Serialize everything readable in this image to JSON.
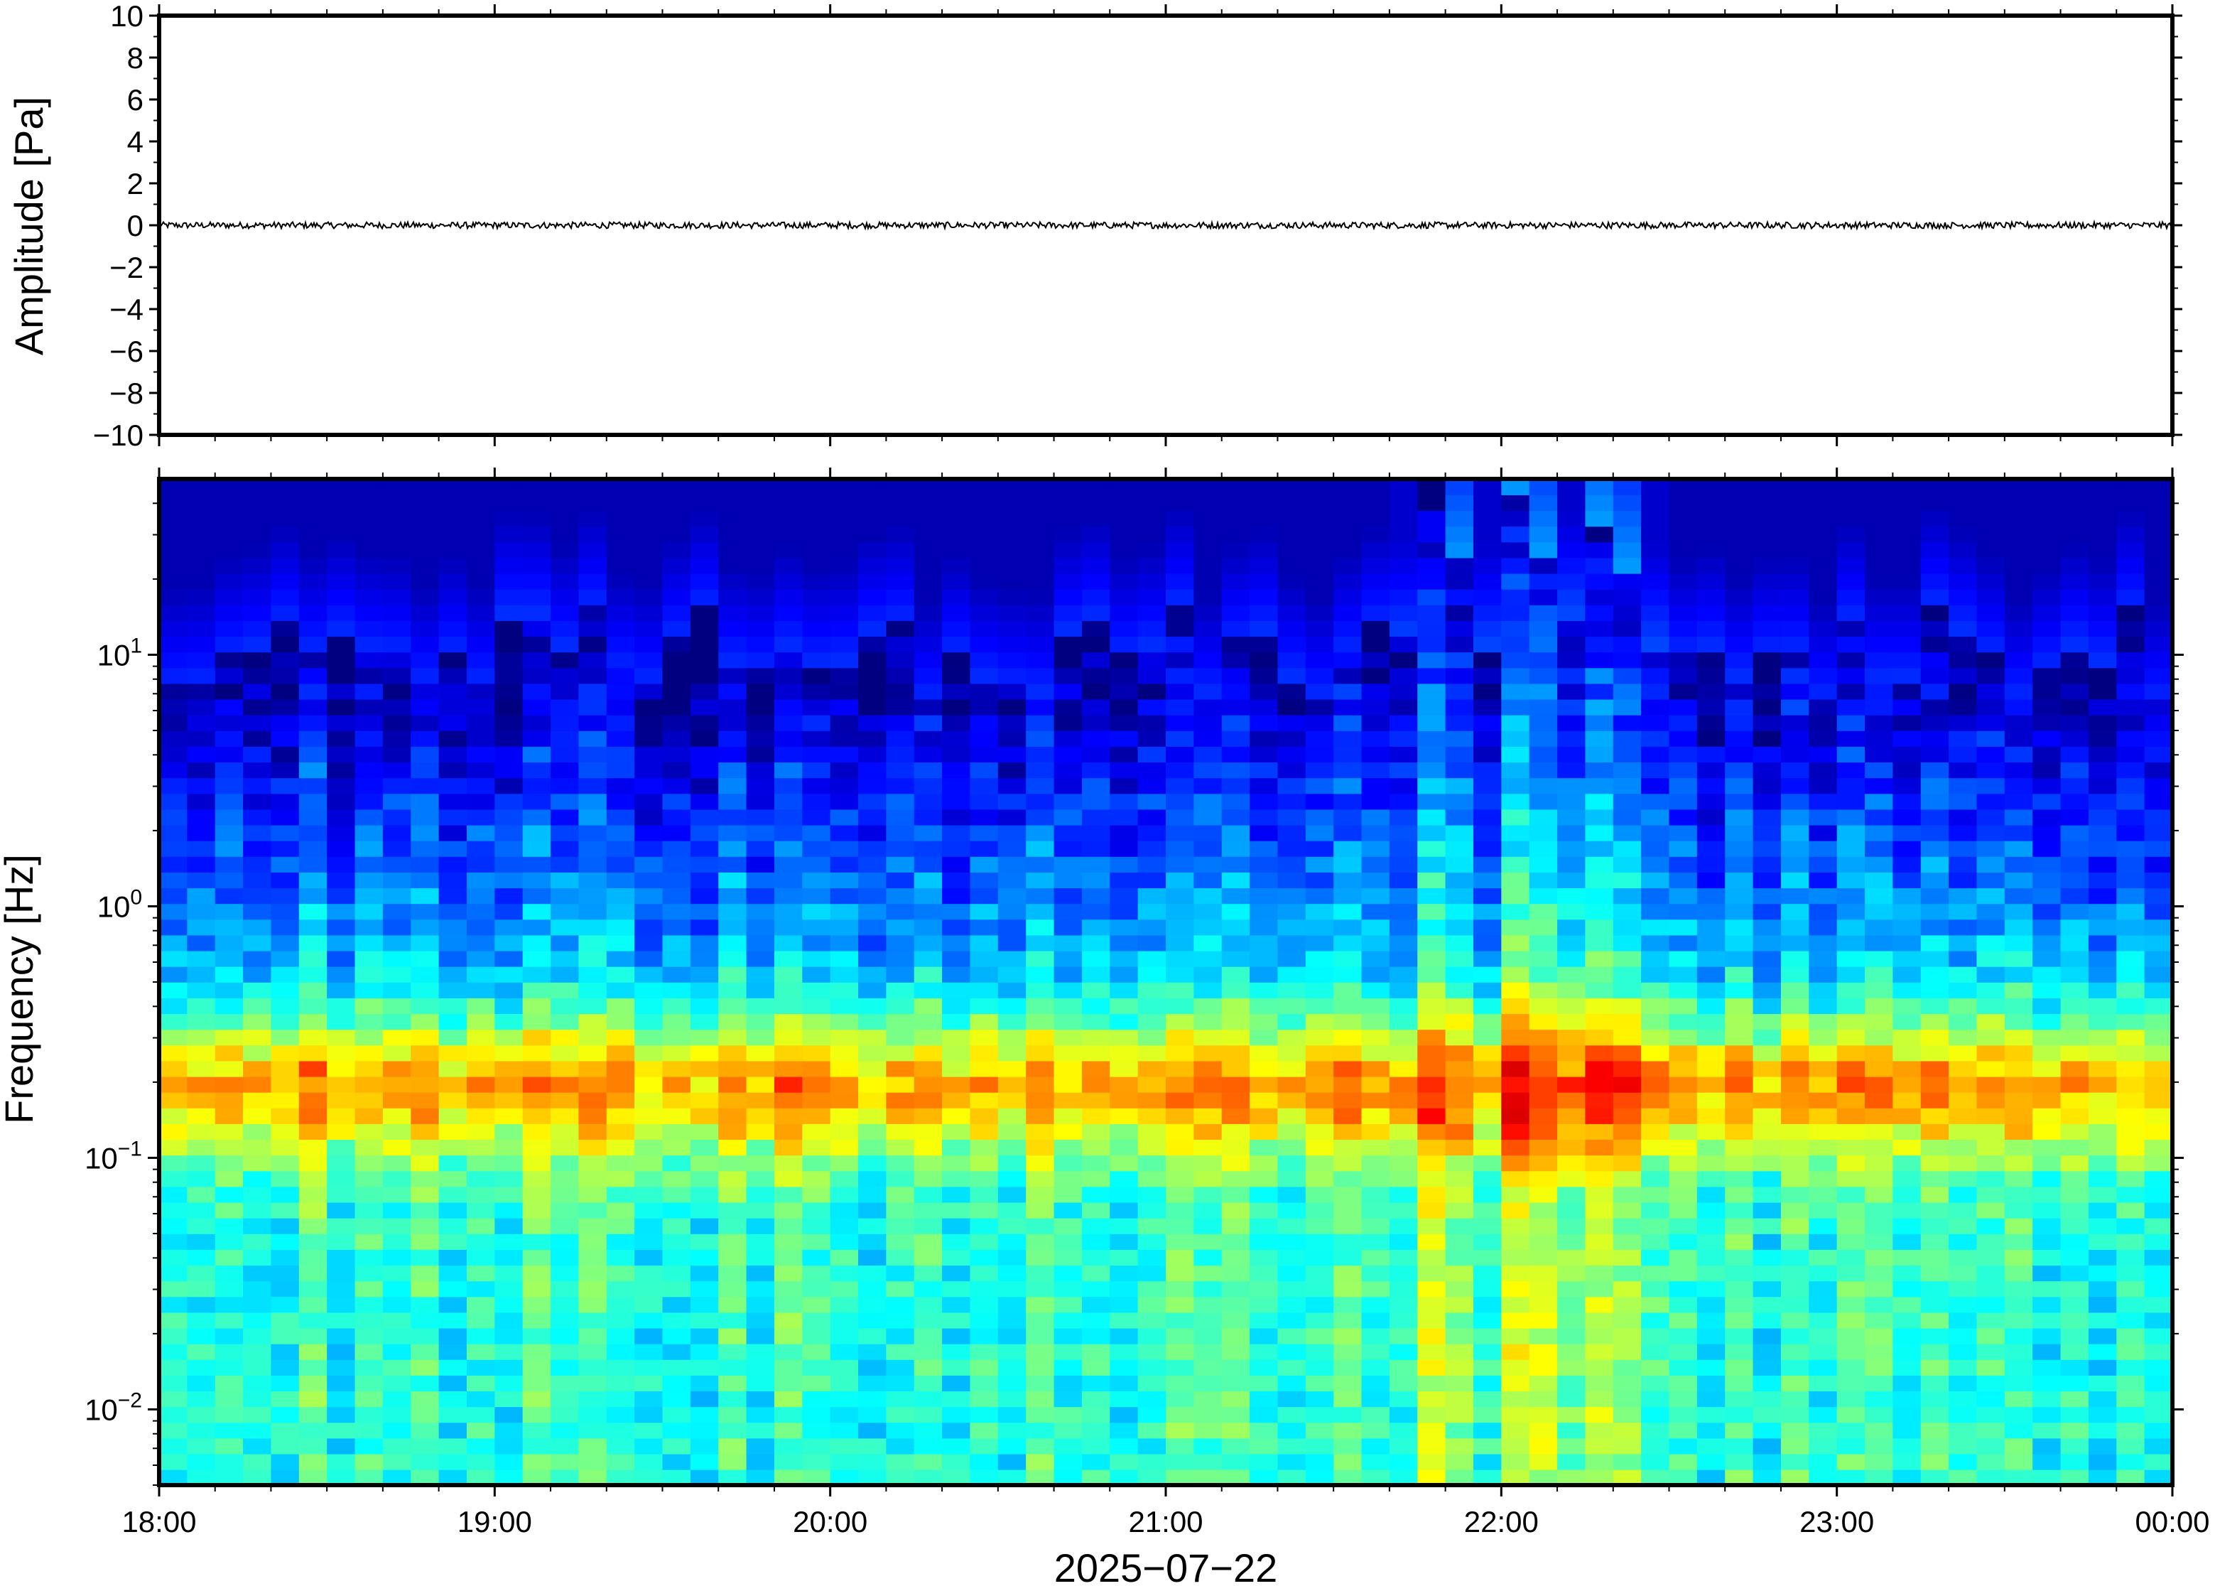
{
  "chart_data": [
    {
      "type": "line",
      "panel": "waveform",
      "ylabel": "Amplitude [Pa]",
      "ylim": [
        -10,
        10
      ],
      "y_ticks": [
        "10",
        "8",
        "6",
        "4",
        "2",
        "0",
        "−2",
        "−4",
        "−6",
        "−8",
        "−10"
      ],
      "y_tick_values": [
        10,
        8,
        6,
        4,
        2,
        0,
        -2,
        -4,
        -6,
        -8,
        -10
      ],
      "series": [
        {
          "x_start": "18:00",
          "x_end": "00:00",
          "y_mean": 0,
          "y_range": [
            -0.15,
            0.15
          ]
        }
      ],
      "line_color": "#000000",
      "grid": false
    },
    {
      "type": "heatmap",
      "panel": "spectrogram",
      "ylabel": "Frequency [Hz]",
      "xlabel": "2025−07−22",
      "y_scale": "log",
      "ylim_hz": [
        0.005,
        50
      ],
      "y_ticks": [
        {
          "base": "10",
          "exp": "1",
          "value": 10
        },
        {
          "base": "10",
          "exp": "0",
          "value": 1
        },
        {
          "base": "10",
          "exp": "−1",
          "value": 0.1
        },
        {
          "base": "10",
          "exp": "−2",
          "value": 0.01
        }
      ],
      "x_ticks": [
        "18:00",
        "19:00",
        "20:00",
        "21:00",
        "22:00",
        "23:00",
        "00:00"
      ],
      "x_tick_hours": [
        0,
        1,
        2,
        3,
        4,
        5,
        6
      ],
      "colormap": "jet",
      "peak_band_hz": [
        0.15,
        0.25
      ],
      "noise_floor_above_hz": 10,
      "high_frequency_bursts_time": [
        "21:50",
        "22:05",
        "22:20–22:30"
      ],
      "grid": false
    }
  ],
  "colors": {
    "background": "#ffffff",
    "frame": "#000000",
    "spectrogram_floor": "#0b0e78",
    "peak_band": "#f2e07a"
  }
}
